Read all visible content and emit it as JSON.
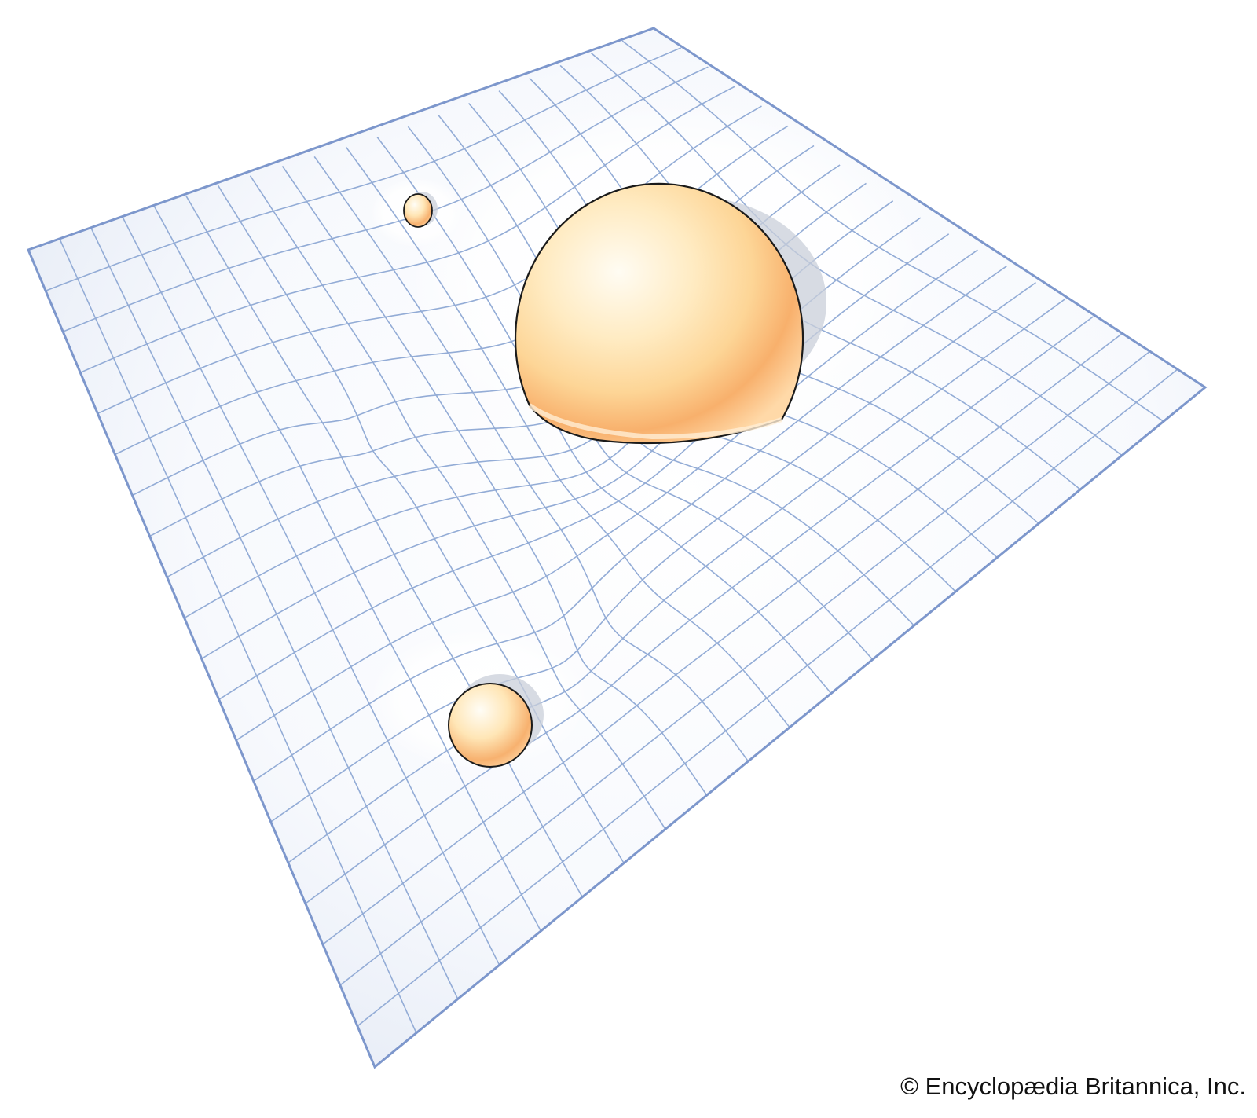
{
  "illustration": {
    "subject": "spacetime-curvature-grid",
    "colors": {
      "grid_line": "#93acd6",
      "grid_border": "#7d97cc",
      "sheet_fill_edge": "#e2e8f4",
      "sheet_fill_center": "#ffffff",
      "sphere_light": "#fff9ea",
      "sphere_mid": "#ffdfa3",
      "sphere_dark": "#f6a360",
      "sphere_outline": "#1a1a1a",
      "shadow": "#c9cfd9"
    },
    "bodies": [
      {
        "name": "large-sphere",
        "relative_mass": "large"
      },
      {
        "name": "medium-sphere",
        "relative_mass": "medium"
      },
      {
        "name": "small-sphere",
        "relative_mass": "small"
      }
    ]
  },
  "credit": {
    "text": "© Encyclopædia Britannica, Inc."
  }
}
